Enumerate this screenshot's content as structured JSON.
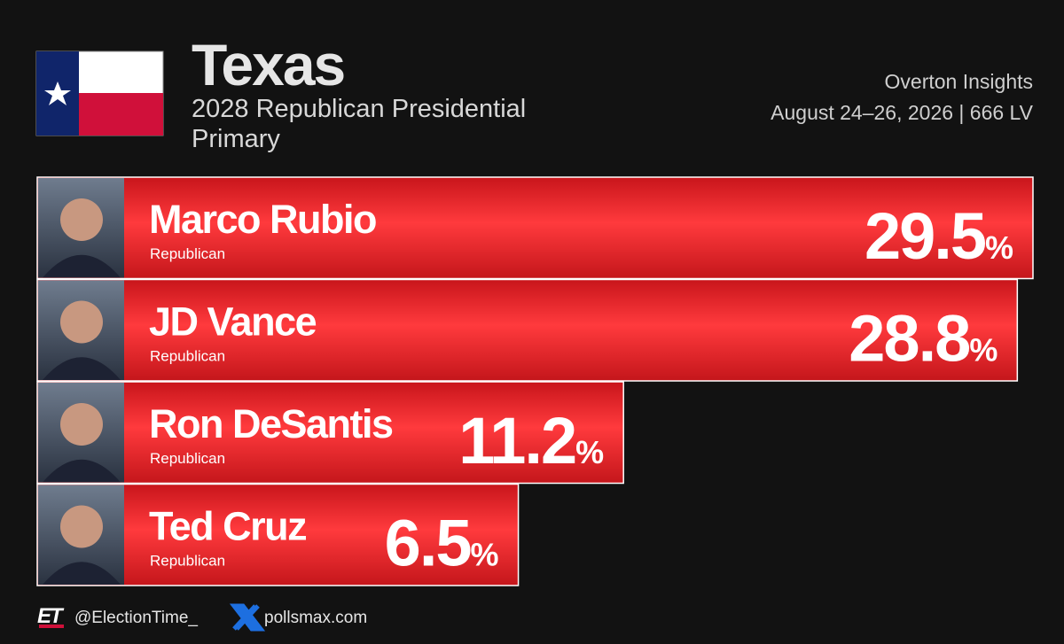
{
  "chart_data": {
    "type": "bar",
    "orientation": "horizontal",
    "title": "Texas",
    "subtitle": "2028 Republican Presidential Primary",
    "pollster": "Overton Insights",
    "field_dates": "August 24–26, 2026 | 666 LV",
    "categories": [
      "Marco Rubio",
      "JD Vance",
      "Ron DeSantis",
      "Ted Cruz"
    ],
    "parties": [
      "Republican",
      "Republican",
      "Republican",
      "Republican"
    ],
    "values": [
      29.5,
      28.8,
      11.2,
      6.5
    ],
    "value_unit": "%",
    "color": "#e8262b",
    "xlim": [
      -15,
      29.5
    ]
  },
  "footer": {
    "logo": "ET",
    "handle": "@ElectionTime_",
    "site": "pollsmax.com"
  }
}
